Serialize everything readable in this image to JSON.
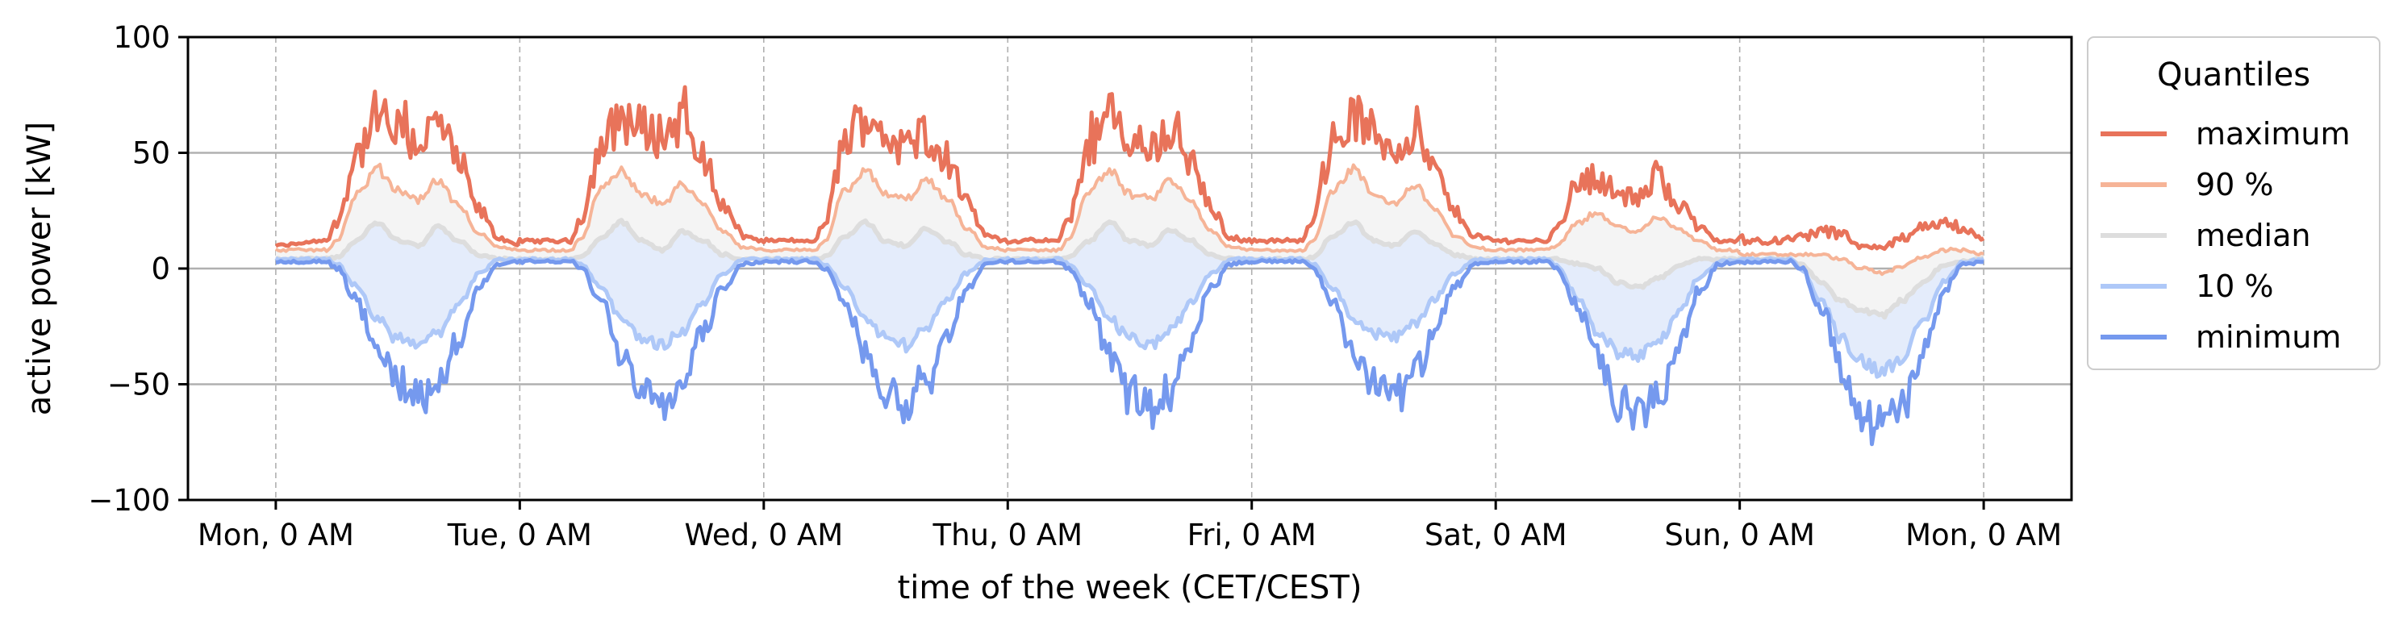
{
  "chart_data": {
    "type": "line",
    "xlabel": "time of the week (CET/CEST)",
    "ylabel": "active power [kW]",
    "ylim": [
      -100,
      100
    ],
    "xlim_days": [
      -0.36,
      7.36
    ],
    "yticks": [
      -100,
      -50,
      0,
      50,
      100
    ],
    "ytick_labels": [
      "−100",
      "−50",
      "0",
      "50",
      "100"
    ],
    "xticks": [
      0,
      1,
      2,
      3,
      4,
      5,
      6,
      7
    ],
    "xtick_labels": [
      "Mon, 0 AM",
      "Tue, 0 AM",
      "Wed, 0 AM",
      "Thu, 0 AM",
      "Fri, 0 AM",
      "Sat, 0 AM",
      "Sun, 0 AM",
      "Mon, 0 AM"
    ],
    "grid": {
      "y": "solid",
      "x": "dashed"
    },
    "legend": {
      "title": "Quantiles",
      "placement": "outside-right"
    },
    "shaded_bands": [
      {
        "between": [
          "median",
          "90 %"
        ],
        "color": "#f4f4f4"
      },
      {
        "between": [
          "10 %",
          "median"
        ],
        "color": "#e4ecfb"
      }
    ],
    "series_colors": {
      "maximum": "#e8735a",
      "90 %": "#f6b497",
      "median": "#dddddd",
      "10 %": "#aec8f8",
      "minimum": "#7599ee"
    },
    "daily_profile_hours": [
      0,
      5,
      6,
      8,
      10,
      12,
      14,
      16,
      18,
      20,
      22,
      24
    ],
    "series": [
      {
        "name": "maximum",
        "color": "#e8735a",
        "width": 5,
        "baseline": [
          10,
          10,
          10,
          10,
          10,
          9.5,
          5
        ],
        "daily_peaks": [
          [
            10,
            12,
            20,
            50,
            65,
            58,
            55,
            62,
            45,
            25,
            13,
            10
          ],
          [
            12,
            12,
            22,
            52,
            66,
            60,
            58,
            64,
            48,
            27,
            14,
            12
          ],
          [
            12,
            12,
            20,
            55,
            66,
            58,
            52,
            60,
            48,
            28,
            14,
            12
          ],
          [
            12,
            12,
            22,
            54,
            65,
            55,
            52,
            62,
            46,
            26,
            13,
            12
          ],
          [
            12,
            12,
            22,
            54,
            65,
            58,
            52,
            60,
            42,
            24,
            14,
            12
          ],
          [
            12,
            12,
            18,
            36,
            40,
            32,
            30,
            40,
            28,
            18,
            12,
            12
          ],
          [
            12,
            12,
            14,
            16,
            15,
            10,
            9,
            13,
            17,
            20,
            18,
            12
          ]
        ]
      },
      {
        "name": "90 %",
        "color": "#f6b497",
        "width": 4,
        "baseline": [
          8,
          8,
          8,
          8,
          8,
          7,
          4
        ],
        "daily_peaks": [
          [
            8,
            8,
            12,
            32,
            43,
            34,
            30,
            38,
            27,
            15,
            9,
            8
          ],
          [
            8,
            8,
            13,
            34,
            42,
            32,
            28,
            36,
            28,
            16,
            9,
            8
          ],
          [
            8,
            8,
            12,
            34,
            42,
            32,
            30,
            38,
            30,
            17,
            9,
            8
          ],
          [
            8,
            8,
            13,
            34,
            42,
            32,
            30,
            38,
            29,
            16,
            9,
            8
          ],
          [
            8,
            8,
            12,
            34,
            43,
            32,
            28,
            36,
            26,
            14,
            9,
            8
          ],
          [
            8,
            8,
            10,
            20,
            24,
            18,
            16,
            22,
            17,
            12,
            8,
            8
          ],
          [
            6,
            6,
            6,
            6,
            4,
            0,
            -2,
            1,
            5,
            8,
            8,
            6
          ]
        ]
      },
      {
        "name": "median",
        "color": "#dddddd",
        "width": 6,
        "baseline": [
          4,
          4,
          4,
          4,
          4,
          4,
          4
        ],
        "daily_peaks": [
          [
            4,
            4,
            5,
            12,
            20,
            12,
            10,
            18,
            12,
            6,
            4,
            4
          ],
          [
            4,
            4,
            5,
            13,
            20,
            12,
            8,
            16,
            12,
            6,
            4,
            4
          ],
          [
            4,
            4,
            5,
            14,
            20,
            12,
            10,
            17,
            12,
            6,
            4,
            4
          ],
          [
            4,
            4,
            5,
            12,
            20,
            12,
            10,
            17,
            12,
            6,
            4,
            4
          ],
          [
            4,
            4,
            5,
            14,
            20,
            12,
            10,
            16,
            11,
            6,
            4,
            4
          ],
          [
            4,
            4,
            4,
            2,
            0,
            -6,
            -8,
            -4,
            1,
            4,
            4,
            4
          ],
          [
            4,
            4,
            2,
            -6,
            -14,
            -18,
            -20,
            -14,
            -6,
            1,
            3,
            4
          ]
        ]
      },
      {
        "name": "10 %",
        "color": "#aec8f8",
        "width": 5,
        "baseline": [
          4,
          4,
          4,
          4,
          4,
          4,
          4
        ],
        "daily_peaks": [
          [
            4,
            4,
            2,
            -8,
            -22,
            -30,
            -33,
            -28,
            -16,
            -2,
            4,
            4
          ],
          [
            4,
            4,
            2,
            -8,
            -22,
            -30,
            -33,
            -27,
            -15,
            -2,
            4,
            4
          ],
          [
            4,
            4,
            2,
            -8,
            -22,
            -30,
            -33,
            -26,
            -14,
            -2,
            4,
            4
          ],
          [
            4,
            4,
            2,
            -8,
            -22,
            -30,
            -33,
            -27,
            -15,
            -2,
            4,
            4
          ],
          [
            4,
            4,
            2,
            -8,
            -22,
            -28,
            -30,
            -24,
            -13,
            -2,
            4,
            4
          ],
          [
            4,
            4,
            1,
            -12,
            -28,
            -36,
            -38,
            -32,
            -20,
            -4,
            3,
            4
          ],
          [
            4,
            4,
            0,
            -14,
            -30,
            -40,
            -44,
            -38,
            -24,
            -6,
            3,
            4
          ]
        ]
      },
      {
        "name": "minimum",
        "color": "#7599ee",
        "width": 5,
        "baseline": [
          4,
          4,
          4,
          4,
          4,
          4,
          4
        ],
        "daily_peaks": [
          [
            3,
            3,
            0,
            -14,
            -36,
            -50,
            -58,
            -48,
            -30,
            -8,
            2,
            3
          ],
          [
            3,
            3,
            0,
            -14,
            -36,
            -50,
            -56,
            -46,
            -28,
            -8,
            2,
            3
          ],
          [
            3,
            3,
            0,
            -14,
            -36,
            -52,
            -58,
            -48,
            -30,
            -8,
            2,
            3
          ],
          [
            3,
            3,
            0,
            -14,
            -38,
            -54,
            -62,
            -52,
            -32,
            -8,
            2,
            3
          ],
          [
            3,
            3,
            0,
            -14,
            -36,
            -48,
            -56,
            -46,
            -28,
            -8,
            2,
            3
          ],
          [
            3,
            3,
            0,
            -16,
            -40,
            -58,
            -66,
            -56,
            -34,
            -10,
            2,
            3
          ],
          [
            3,
            3,
            0,
            -16,
            -42,
            -62,
            -70,
            -60,
            -38,
            -10,
            2,
            3
          ]
        ]
      }
    ]
  }
}
